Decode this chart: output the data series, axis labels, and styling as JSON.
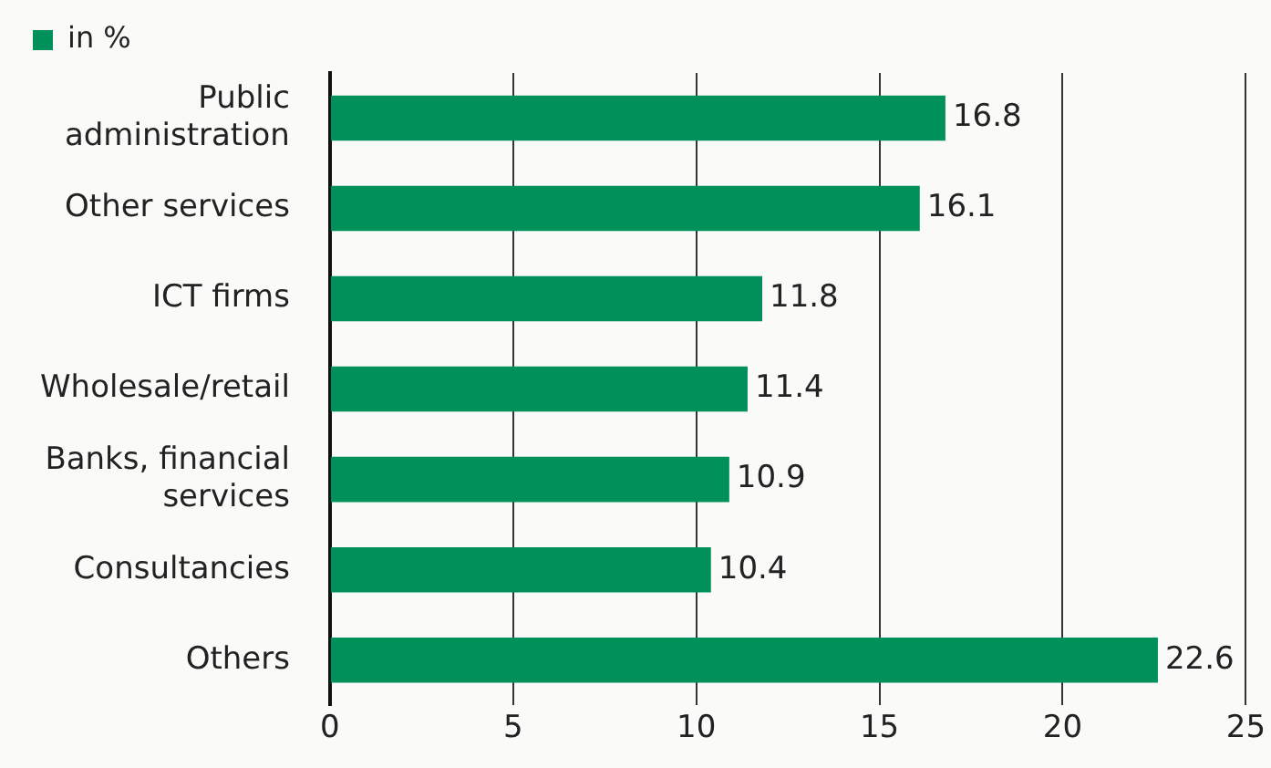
{
  "chart_data": {
    "type": "bar",
    "orientation": "horizontal",
    "categories": [
      "Public administration",
      "Other services",
      "ICT firms",
      "Wholesale/retail",
      "Banks, financial services",
      "Consultancies",
      "Others"
    ],
    "series": [
      {
        "name": "in %",
        "color": "#00915a",
        "values": [
          16.8,
          16.1,
          11.8,
          11.4,
          10.9,
          10.4,
          22.6
        ]
      }
    ],
    "xlim": [
      0,
      25
    ],
    "xticks": [
      0,
      5,
      10,
      15,
      20,
      25
    ],
    "grid": "x",
    "legend": "top left",
    "data_labels": true
  }
}
